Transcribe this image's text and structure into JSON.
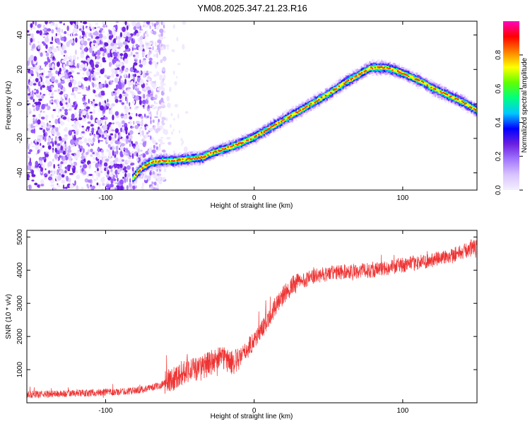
{
  "title": "YM08.2025.347.21.23.R16",
  "chart_data": [
    {
      "type": "heatmap",
      "xlabel": "Height of straight line (km)",
      "ylabel": "Frequency (Hz)",
      "xlim": [
        -153,
        150
      ],
      "ylim": [
        -50,
        48
      ],
      "xticks": [
        -100,
        0,
        100
      ],
      "yticks": [
        -40,
        -20,
        0,
        20,
        40
      ],
      "colorbar": {
        "label": "Normalized spectral amplitude",
        "range": [
          0,
          1
        ],
        "ticks": [
          "0.0",
          "0.2",
          "0.4",
          "0.6",
          "0.8"
        ],
        "tick_values": [
          0,
          0.2,
          0.4,
          0.6,
          0.8
        ],
        "colors": [
          "#f4f0ff",
          "#d9c3ff",
          "#a277ff",
          "#6a1fe0",
          "#0000ff",
          "#00c8ff",
          "#00ff80",
          "#60ff00",
          "#ffff00",
          "#ff8000",
          "#ff0000",
          "#ff00c0"
        ]
      },
      "ridge": {
        "x": [
          -82,
          -76,
          -70,
          -63,
          -55,
          -45,
          -35,
          -28,
          -20,
          -10,
          0,
          10,
          20,
          30,
          40,
          50,
          60,
          70,
          78,
          88,
          96,
          104,
          112,
          120,
          130,
          140,
          150
        ],
        "y": [
          -43,
          -37,
          -34,
          -33,
          -33,
          -32,
          -31,
          -28,
          -26,
          -23,
          -19,
          -14,
          -9,
          -4,
          1,
          6,
          12,
          17,
          21,
          21,
          19,
          16,
          13,
          9,
          5,
          1,
          -4
        ]
      },
      "noise_region": {
        "x_start": -153,
        "x_end": -60
      }
    },
    {
      "type": "line",
      "xlabel": "Height of straight line (km)",
      "ylabel": "SNR (10 * v/v)",
      "xlim": [
        -153,
        150
      ],
      "ylim": [
        0,
        5200
      ],
      "xticks": [
        -100,
        0,
        100
      ],
      "yticks": [
        1000,
        2000,
        3000,
        4000,
        5000
      ],
      "color": "#ee3333",
      "series": [
        {
          "x": [
            -153,
            -130,
            -110,
            -90,
            -75,
            -65,
            -58,
            -50,
            -45,
            -40,
            -35,
            -30,
            -25,
            -20,
            -15,
            -10,
            -5,
            0,
            5,
            10,
            15,
            20,
            25,
            30,
            40,
            50,
            60,
            80,
            100,
            120,
            140,
            150
          ],
          "values": [
            250,
            270,
            300,
            330,
            400,
            500,
            650,
            850,
            1000,
            1000,
            1050,
            1200,
            1300,
            1350,
            1200,
            1300,
            1600,
            1900,
            2200,
            2600,
            2950,
            3250,
            3500,
            3650,
            3800,
            3900,
            3950,
            4000,
            4150,
            4300,
            4550,
            4700
          ]
        }
      ]
    }
  ]
}
